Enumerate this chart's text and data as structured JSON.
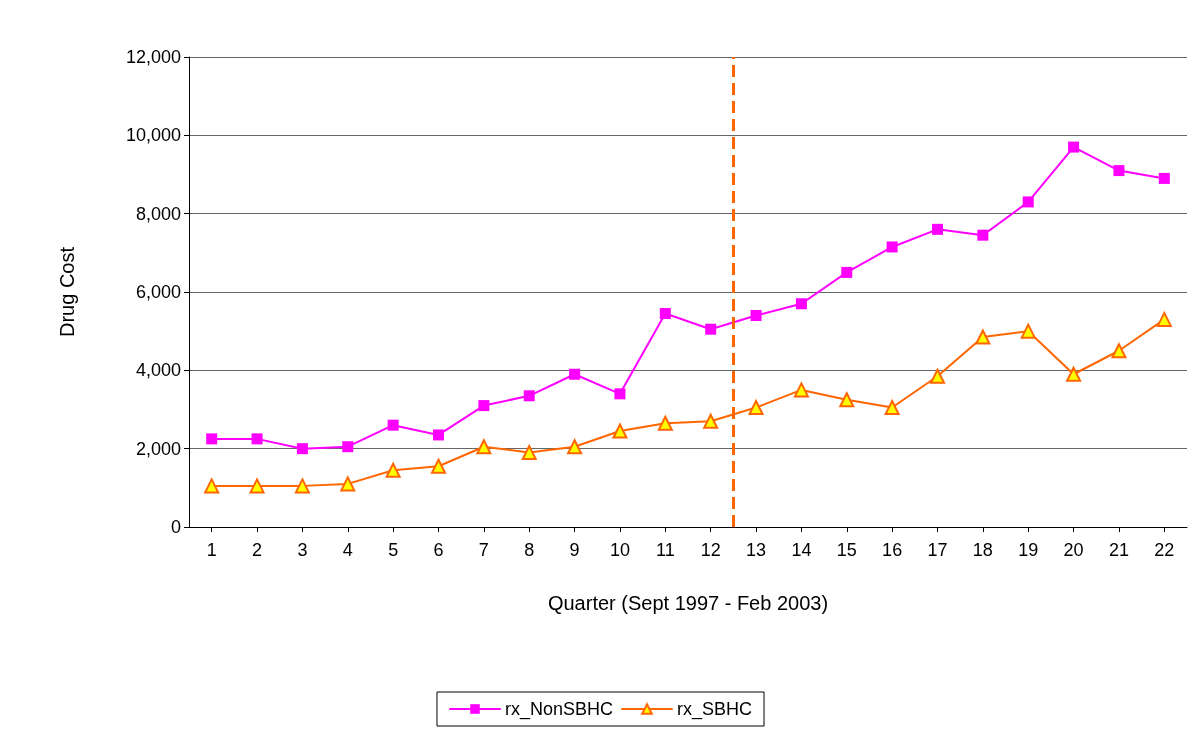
{
  "chart_data": {
    "type": "line",
    "xlabel": "Quarter (Sept 1997 - Feb 2003)",
    "ylabel": "Drug Cost",
    "x": [
      1,
      2,
      3,
      4,
      5,
      6,
      7,
      8,
      9,
      10,
      11,
      12,
      13,
      14,
      15,
      16,
      17,
      18,
      19,
      20,
      21,
      22
    ],
    "xlim": [
      0.5,
      22.5
    ],
    "xticks": [
      1,
      2,
      3,
      4,
      5,
      6,
      7,
      8,
      9,
      10,
      11,
      12,
      13,
      14,
      15,
      16,
      17,
      18,
      19,
      20,
      21,
      22
    ],
    "ylim": [
      0,
      12000
    ],
    "yticks": [
      {
        "value": 0,
        "label": "0"
      },
      {
        "value": 2000,
        "label": "2,000"
      },
      {
        "value": 4000,
        "label": "4,000"
      },
      {
        "value": 6000,
        "label": "6,000"
      },
      {
        "value": 8000,
        "label": "8,000"
      },
      {
        "value": 10000,
        "label": "10,000"
      },
      {
        "value": 12000,
        "label": "12,000"
      }
    ],
    "series": [
      {
        "name": "rx_NonSBHC",
        "color": "#ff00ff",
        "marker": "square",
        "values": [
          2250,
          2250,
          2000,
          2050,
          2600,
          2350,
          3100,
          3350,
          3900,
          3400,
          5450,
          5050,
          5400,
          5700,
          6500,
          7150,
          7600,
          7450,
          8300,
          9700,
          9100,
          8900
        ]
      },
      {
        "name": "rx_SBHC",
        "color": "#ff6600",
        "marker": "triangle",
        "values": [
          1050,
          1050,
          1050,
          1100,
          1450,
          1550,
          2050,
          1900,
          2050,
          2450,
          2650,
          2700,
          3050,
          3500,
          3250,
          3050,
          3850,
          4850,
          5000,
          3900,
          4500,
          5300
        ]
      }
    ],
    "ref_lines": [
      {
        "axis": "x",
        "value": 12.5,
        "color": "#ff6600",
        "line_style": "dashed"
      }
    ],
    "grid": "y",
    "legend": "bottom",
    "line_style": "solid"
  }
}
